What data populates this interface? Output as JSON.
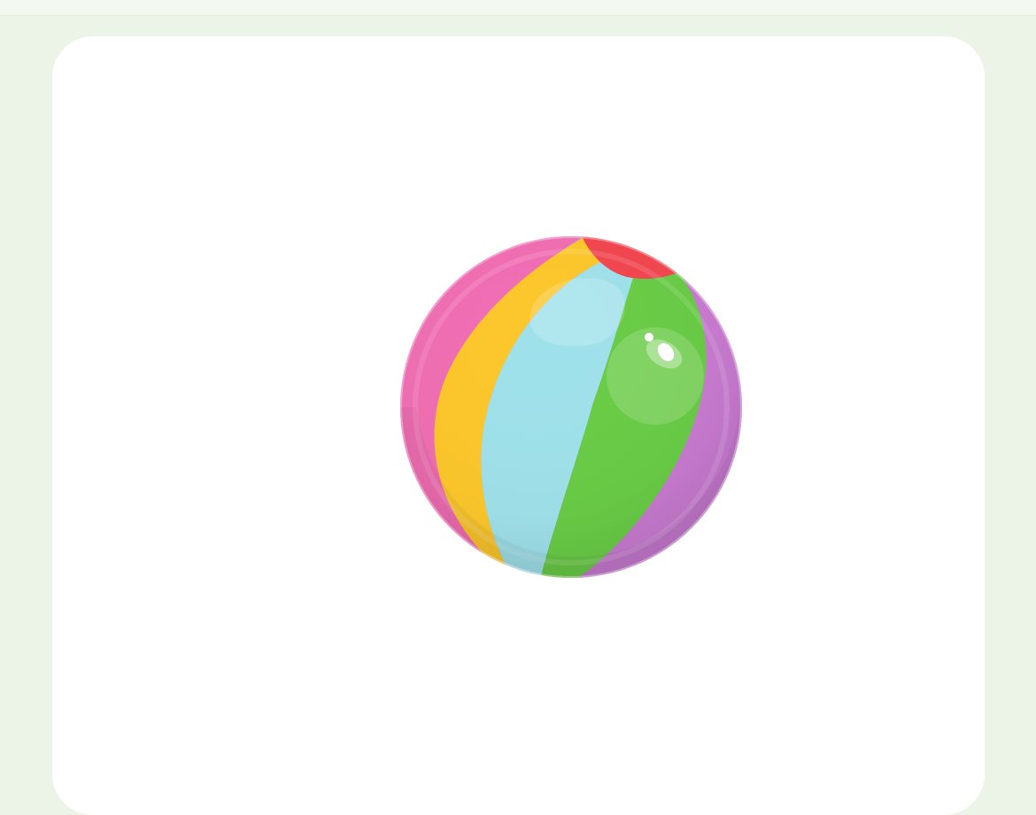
{
  "app": {
    "background_color": "#ecf4e8",
    "top_bar_color": "#f3f8f0",
    "card_color": "#ffffff"
  },
  "image": {
    "icon": "beach-ball-icon",
    "colors": {
      "pink": "#f06eb3",
      "yellow": "#fcc72b",
      "light_blue": "#9fe1ea",
      "green": "#69cc46",
      "purple": "#c97bd1",
      "red_cap": "#f24650"
    }
  }
}
